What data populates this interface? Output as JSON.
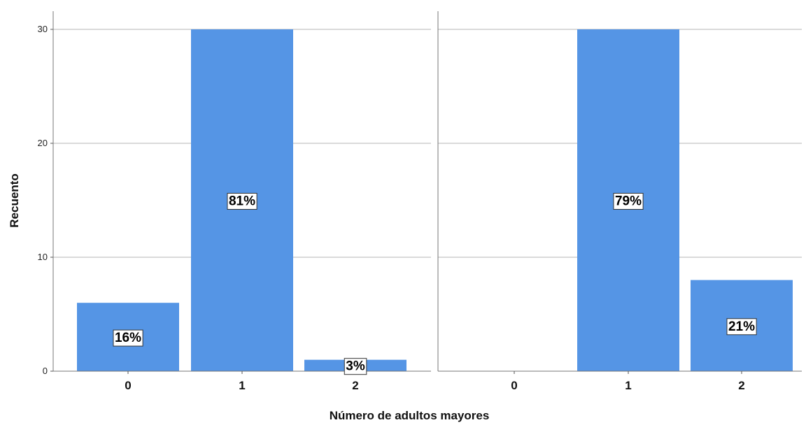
{
  "chart_data": {
    "type": "bar",
    "xlabel": "Número de adultos mayores",
    "ylabel": "Recuento",
    "ylim": [
      0,
      32
    ],
    "yticks": [
      0,
      10,
      20,
      30
    ],
    "grid": true,
    "bar_color": "#5595e5",
    "panels": [
      {
        "categories": [
          "0",
          "1",
          "2"
        ],
        "values": [
          6,
          30,
          1
        ],
        "labels": [
          "16%",
          "81%",
          "3%"
        ]
      },
      {
        "categories": [
          "0",
          "1",
          "2"
        ],
        "values": [
          0,
          30,
          8
        ],
        "labels": [
          "",
          "79%",
          "21%"
        ]
      }
    ]
  }
}
